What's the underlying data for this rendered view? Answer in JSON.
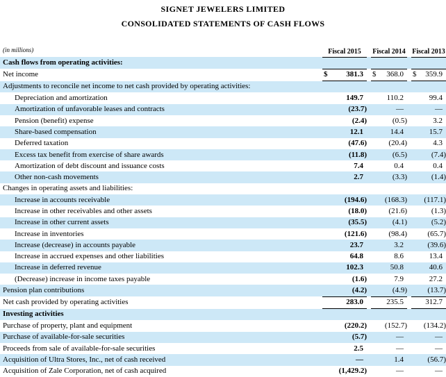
{
  "title": "SIGNET JEWELERS LIMITED",
  "subtitle": "CONSOLIDATED STATEMENTS OF CASH FLOWS",
  "table": {
    "units_label": "(in millions)",
    "currency_symbol": "$",
    "columns": [
      "Fiscal 2015",
      "Fiscal 2014",
      "Fiscal 2013"
    ],
    "colors": {
      "row_highlight": "#cde8f7",
      "rule": "#000000"
    },
    "rows": [
      {
        "label": "Cash flows from operating activities:",
        "section": true,
        "values": null
      },
      {
        "label": "Net income",
        "dollar": true,
        "rule": "tb",
        "values": [
          "381.3",
          "368.0",
          "359.9"
        ]
      },
      {
        "label": "Adjustments to reconcile net income to net cash provided by operating activities:",
        "values": null
      },
      {
        "label": "Depreciation and amortization",
        "indent": true,
        "values": [
          "149.7",
          "110.2",
          "99.4"
        ]
      },
      {
        "label": "Amortization of unfavorable leases and contracts",
        "indent": true,
        "values": [
          "(23.7)",
          "—",
          "—"
        ]
      },
      {
        "label": "Pension (benefit) expense",
        "indent": true,
        "values": [
          "(2.4)",
          "(0.5)",
          "3.2"
        ]
      },
      {
        "label": "Share-based compensation",
        "indent": true,
        "values": [
          "12.1",
          "14.4",
          "15.7"
        ]
      },
      {
        "label": "Deferred taxation",
        "indent": true,
        "values": [
          "(47.6)",
          "(20.4)",
          "4.3"
        ]
      },
      {
        "label": "Excess tax benefit from exercise of share awards",
        "indent": true,
        "values": [
          "(11.8)",
          "(6.5)",
          "(7.4)"
        ]
      },
      {
        "label": "Amortization of debt discount and issuance costs",
        "indent": true,
        "values": [
          "7.4",
          "0.4",
          "0.4"
        ]
      },
      {
        "label": "Other non-cash movements",
        "indent": true,
        "values": [
          "2.7",
          "(3.3)",
          "(1.4)"
        ]
      },
      {
        "label": "Changes in operating assets and liabilities:",
        "values": null
      },
      {
        "label": "Increase in accounts receivable",
        "indent": true,
        "values": [
          "(194.6)",
          "(168.3)",
          "(117.1)"
        ]
      },
      {
        "label": "Increase in other receivables and other assets",
        "indent": true,
        "values": [
          "(18.0)",
          "(21.6)",
          "(1.3)"
        ]
      },
      {
        "label": "Increase in other current assets",
        "indent": true,
        "values": [
          "(35.5)",
          "(4.1)",
          "(5.2)"
        ]
      },
      {
        "label": "Increase in inventories",
        "indent": true,
        "values": [
          "(121.6)",
          "(98.4)",
          "(65.7)"
        ]
      },
      {
        "label": "Increase (decrease) in accounts payable",
        "indent": true,
        "values": [
          "23.7",
          "3.2",
          "(39.6)"
        ]
      },
      {
        "label": "Increase in accrued expenses and other liabilities",
        "indent": true,
        "values": [
          "64.8",
          "8.6",
          "13.4"
        ]
      },
      {
        "label": "Increase in deferred revenue",
        "indent": true,
        "values": [
          "102.3",
          "50.8",
          "40.6"
        ]
      },
      {
        "label": "(Decrease) increase in income taxes payable",
        "indent": true,
        "values": [
          "(1.6)",
          "7.9",
          "27.2"
        ]
      },
      {
        "label": "Pension plan contributions",
        "rule": "b",
        "values": [
          "(4.2)",
          "(4.9)",
          "(13.7)"
        ]
      },
      {
        "label": "Net cash provided by operating activities",
        "rule": "b",
        "values": [
          "283.0",
          "235.5",
          "312.7"
        ]
      },
      {
        "label": "Investing activities",
        "section": true,
        "values": null
      },
      {
        "label": "Purchase of property, plant and equipment",
        "values": [
          "(220.2)",
          "(152.7)",
          "(134.2)"
        ]
      },
      {
        "label": "Purchase of available-for-sale securities",
        "values": [
          "(5.7)",
          "—",
          "—"
        ]
      },
      {
        "label": "Proceeds from sale of available-for-sale securities",
        "values": [
          "2.5",
          "—",
          "—"
        ]
      },
      {
        "label": "Acquisition of Ultra Stores, Inc., net of cash received",
        "values": [
          "—",
          "1.4",
          "(56.7)"
        ]
      },
      {
        "label": "Acquisition of Zale Corporation, net of cash acquired",
        "values": [
          "(1,429.2)",
          "—",
          "—"
        ]
      }
    ]
  }
}
